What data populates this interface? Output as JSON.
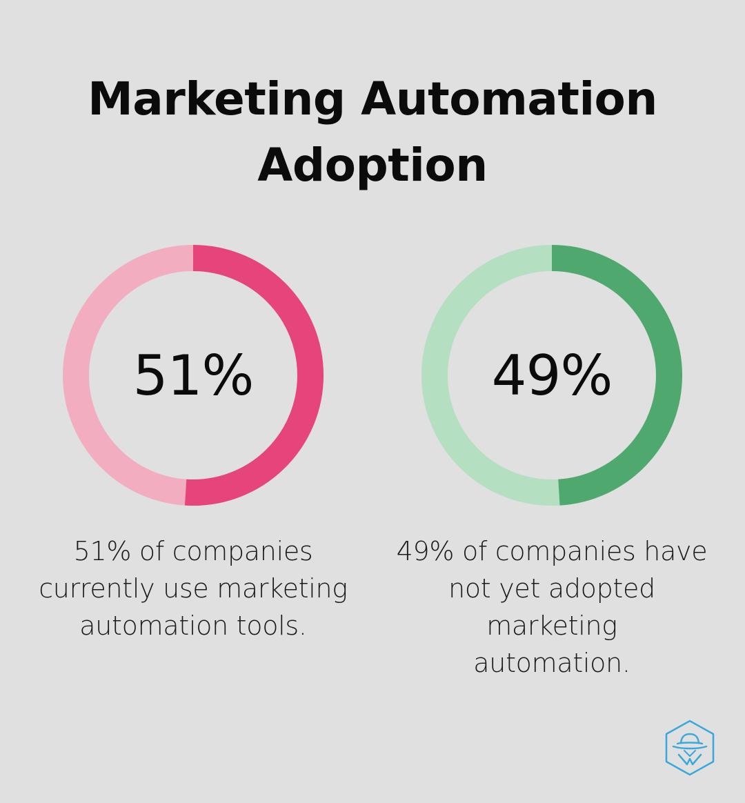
{
  "chart_data": [
    {
      "type": "pie",
      "title": "Marketing Automation Adoption",
      "value": 51,
      "value_label": "51%",
      "caption": "51% of companies currently use marketing automation tools.",
      "colors": {
        "filled": "#e5457a",
        "remainder": "#f2adc1"
      }
    },
    {
      "type": "pie",
      "value": 49,
      "value_label": "49%",
      "caption": "49% of companies have not yet adopted marketing automation.",
      "colors": {
        "filled": "#4fa86d",
        "remainder": "#b4dfc1"
      }
    }
  ],
  "header": {
    "title": "Marketing Automation Adoption"
  },
  "stats": [
    {
      "value_label": "51%",
      "caption_lines": [
        "51% of companies",
        "currently use marketing",
        "automation tools."
      ]
    },
    {
      "value_label": "49%",
      "caption_lines": [
        "49% of companies have",
        "not yet adopted marketing",
        "automation."
      ]
    }
  ],
  "brand": {
    "logo_icon": "spy-hat-hexagon-icon",
    "color": "#3aa8dc"
  }
}
